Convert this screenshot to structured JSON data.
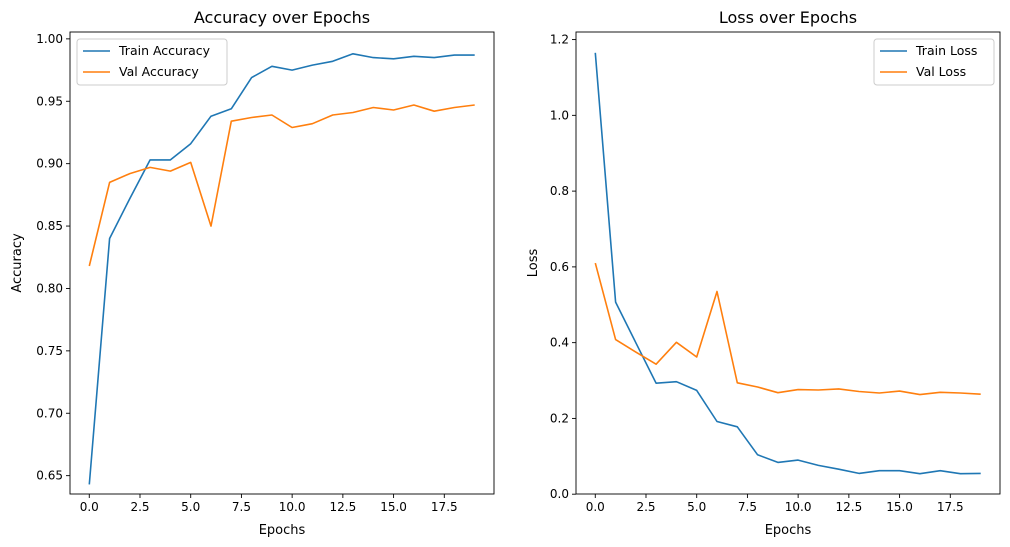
{
  "colors": {
    "train": "#1f77b4",
    "val": "#ff7f0e"
  },
  "chart_data": [
    {
      "type": "line",
      "title": "Accuracy over Epochs",
      "xlabel": "Epochs",
      "ylabel": "Accuracy",
      "xlim": [
        -0.95,
        19.95
      ],
      "ylim": [
        0.6353,
        1.0055
      ],
      "xticks": [
        0.0,
        2.5,
        5.0,
        7.5,
        10.0,
        12.5,
        15.0,
        17.5
      ],
      "xtick_labels": [
        "0.0",
        "2.5",
        "5.0",
        "7.5",
        "10.0",
        "12.5",
        "15.0",
        "17.5"
      ],
      "yticks": [
        0.65,
        0.7,
        0.75,
        0.8,
        0.85,
        0.9,
        0.95,
        1.0
      ],
      "ytick_labels": [
        "0.65",
        "0.70",
        "0.75",
        "0.80",
        "0.85",
        "0.90",
        "0.95",
        "1.00"
      ],
      "grid": false,
      "legend": "top-left",
      "x": [
        0,
        1,
        2,
        3,
        4,
        5,
        6,
        7,
        8,
        9,
        10,
        11,
        12,
        13,
        14,
        15,
        16,
        17,
        18,
        19
      ],
      "series": [
        {
          "name": "Train Accuracy",
          "color_key": "train",
          "values": [
            0.643,
            0.84,
            0.872,
            0.903,
            0.903,
            0.916,
            0.938,
            0.944,
            0.969,
            0.978,
            0.975,
            0.979,
            0.982,
            0.988,
            0.985,
            0.984,
            0.986,
            0.985,
            0.987,
            0.987
          ]
        },
        {
          "name": "Val Accuracy",
          "color_key": "val",
          "values": [
            0.818,
            0.885,
            0.892,
            0.897,
            0.894,
            0.901,
            0.85,
            0.934,
            0.937,
            0.939,
            0.929,
            0.932,
            0.939,
            0.941,
            0.945,
            0.943,
            0.947,
            0.942,
            0.945,
            0.947
          ]
        }
      ]
    },
    {
      "type": "line",
      "title": "Loss over Epochs",
      "xlabel": "Epochs",
      "ylabel": "Loss",
      "xlim": [
        -0.95,
        19.95
      ],
      "ylim": [
        0.0005,
        1.22
      ],
      "xticks": [
        0.0,
        2.5,
        5.0,
        7.5,
        10.0,
        12.5,
        15.0,
        17.5
      ],
      "xtick_labels": [
        "0.0",
        "2.5",
        "5.0",
        "7.5",
        "10.0",
        "12.5",
        "15.0",
        "17.5"
      ],
      "yticks": [
        0.0,
        0.2,
        0.4,
        0.6,
        0.8,
        1.0,
        1.2
      ],
      "ytick_labels": [
        "0.0",
        "0.2",
        "0.4",
        "0.6",
        "0.8",
        "1.0",
        "1.2"
      ],
      "grid": false,
      "legend": "top-right",
      "x": [
        0,
        1,
        2,
        3,
        4,
        5,
        6,
        7,
        8,
        9,
        10,
        11,
        12,
        13,
        14,
        15,
        16,
        17,
        18,
        19
      ],
      "series": [
        {
          "name": "Train Loss",
          "color_key": "train",
          "values": [
            1.165,
            0.507,
            0.4,
            0.293,
            0.297,
            0.274,
            0.192,
            0.178,
            0.104,
            0.084,
            0.09,
            0.076,
            0.066,
            0.055,
            0.062,
            0.062,
            0.054,
            0.062,
            0.054,
            0.055
          ]
        },
        {
          "name": "Val Loss",
          "color_key": "val",
          "values": [
            0.61,
            0.408,
            0.375,
            0.343,
            0.401,
            0.362,
            0.535,
            0.294,
            0.283,
            0.268,
            0.276,
            0.275,
            0.278,
            0.271,
            0.267,
            0.272,
            0.263,
            0.269,
            0.267,
            0.264
          ]
        }
      ]
    }
  ]
}
